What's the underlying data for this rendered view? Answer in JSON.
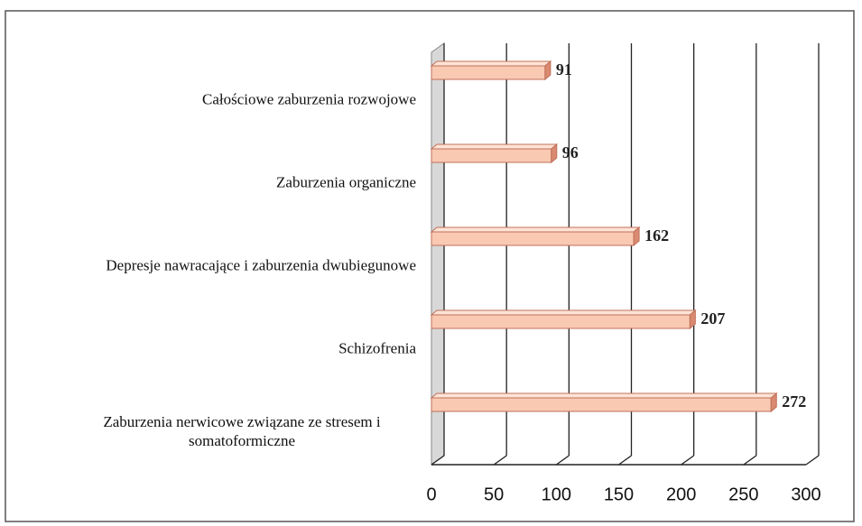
{
  "chart_data": {
    "type": "bar",
    "orientation": "horizontal",
    "categories": [
      "Całościowe zaburzenia rozwojowe",
      "Zaburzenia organiczne",
      "Depresje nawracające i zaburzenia dwubiegunowe",
      "Schizofrenia",
      "Zaburzenia nerwicowe związane ze stresem i somatoformiczne"
    ],
    "values": [
      91,
      96,
      162,
      207,
      272
    ],
    "color": "#f9c9b2",
    "xlim": [
      0,
      300
    ],
    "xticks": [
      0,
      50,
      100,
      150,
      200,
      250,
      300
    ],
    "grid": true
  }
}
